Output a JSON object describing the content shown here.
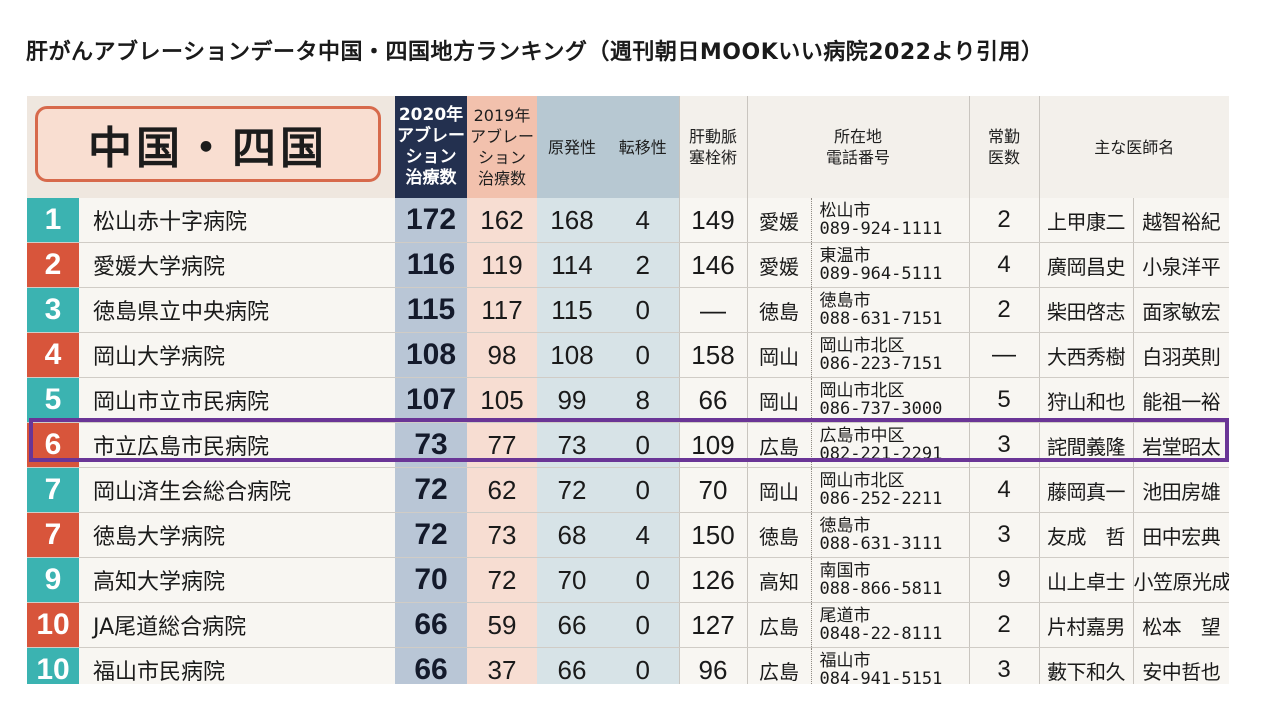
{
  "page_title": "肝がんアブレーションデータ中国・四国地方ランキング（週刊朝日MOOKいい病院2022より引用）",
  "region_label": "中国・四国",
  "headers": {
    "y2020": [
      "2020年",
      "アブレー",
      "ション",
      "治療数"
    ],
    "y2019": [
      "2019年",
      "アブレー",
      "ション",
      "治療数"
    ],
    "primary": "原発性",
    "metastatic": "転移性",
    "hepatic": [
      "肝動脈",
      "塞栓術"
    ],
    "address": [
      "所在地",
      "電話番号"
    ],
    "doctors": [
      "常勤",
      "医数"
    ],
    "physicians": "主な医師名"
  },
  "rows": [
    {
      "rank": "1",
      "name": "松山赤十字病院",
      "y2020": "172",
      "y2019": "162",
      "primary": "168",
      "metastatic": "4",
      "hepatic": "149",
      "pref": "愛媛",
      "city": "松山市",
      "phone": "089-924-1111",
      "doctors": "2",
      "doc1": "上甲康二",
      "doc2": "越智裕紀"
    },
    {
      "rank": "2",
      "name": "愛媛大学病院",
      "y2020": "116",
      "y2019": "119",
      "primary": "114",
      "metastatic": "2",
      "hepatic": "146",
      "pref": "愛媛",
      "city": "東温市",
      "phone": "089-964-5111",
      "doctors": "4",
      "doc1": "廣岡昌史",
      "doc2": "小泉洋平"
    },
    {
      "rank": "3",
      "name": "徳島県立中央病院",
      "y2020": "115",
      "y2019": "117",
      "primary": "115",
      "metastatic": "0",
      "hepatic": "—",
      "pref": "徳島",
      "city": "徳島市",
      "phone": "088-631-7151",
      "doctors": "2",
      "doc1": "柴田啓志",
      "doc2": "面家敏宏"
    },
    {
      "rank": "4",
      "name": "岡山大学病院",
      "y2020": "108",
      "y2019": "98",
      "primary": "108",
      "metastatic": "0",
      "hepatic": "158",
      "pref": "岡山",
      "city": "岡山市北区",
      "phone": "086-223-7151",
      "doctors": "—",
      "doc1": "大西秀樹",
      "doc2": "白羽英則"
    },
    {
      "rank": "5",
      "name": "岡山市立市民病院",
      "y2020": "107",
      "y2019": "105",
      "primary": "99",
      "metastatic": "8",
      "hepatic": "66",
      "pref": "岡山",
      "city": "岡山市北区",
      "phone": "086-737-3000",
      "doctors": "5",
      "doc1": "狩山和也",
      "doc2": "能祖一裕"
    },
    {
      "rank": "6",
      "name": "市立広島市民病院",
      "y2020": "73",
      "y2019": "77",
      "primary": "73",
      "metastatic": "0",
      "hepatic": "109",
      "pref": "広島",
      "city": "広島市中区",
      "phone": "082-221-2291",
      "doctors": "3",
      "doc1": "詫間義隆",
      "doc2": "岩堂昭太"
    },
    {
      "rank": "7",
      "name": "岡山済生会総合病院",
      "y2020": "72",
      "y2019": "62",
      "primary": "72",
      "metastatic": "0",
      "hepatic": "70",
      "pref": "岡山",
      "city": "岡山市北区",
      "phone": "086-252-2211",
      "doctors": "4",
      "doc1": "藤岡真一",
      "doc2": "池田房雄"
    },
    {
      "rank": "7",
      "name": "徳島大学病院",
      "y2020": "72",
      "y2019": "73",
      "primary": "68",
      "metastatic": "4",
      "hepatic": "150",
      "pref": "徳島",
      "city": "徳島市",
      "phone": "088-631-3111",
      "doctors": "3",
      "doc1": "友成　哲",
      "doc2": "田中宏典"
    },
    {
      "rank": "9",
      "name": "高知大学病院",
      "y2020": "70",
      "y2019": "72",
      "primary": "70",
      "metastatic": "0",
      "hepatic": "126",
      "pref": "高知",
      "city": "南国市",
      "phone": "088-866-5811",
      "doctors": "9",
      "doc1": "山上卓士",
      "doc2": "小笠原光成"
    },
    {
      "rank": "10",
      "name": "JA尾道総合病院",
      "y2020": "66",
      "y2019": "59",
      "primary": "66",
      "metastatic": "0",
      "hepatic": "127",
      "pref": "広島",
      "city": "尾道市",
      "phone": "0848-22-8111",
      "doctors": "2",
      "doc1": "片村嘉男",
      "doc2": "松本　望"
    },
    {
      "rank": "10",
      "name": "福山市民病院",
      "y2020": "66",
      "y2019": "37",
      "primary": "66",
      "metastatic": "0",
      "hepatic": "96",
      "pref": "広島",
      "city": "福山市",
      "phone": "084-941-5151",
      "doctors": "3",
      "doc1": "藪下和久",
      "doc2": "安中哲也"
    }
  ],
  "colors": {
    "highlight": "#6a3596",
    "rank_teal": "#3bb3b1",
    "rank_red": "#d8553b",
    "header_2020": "#23304f"
  }
}
